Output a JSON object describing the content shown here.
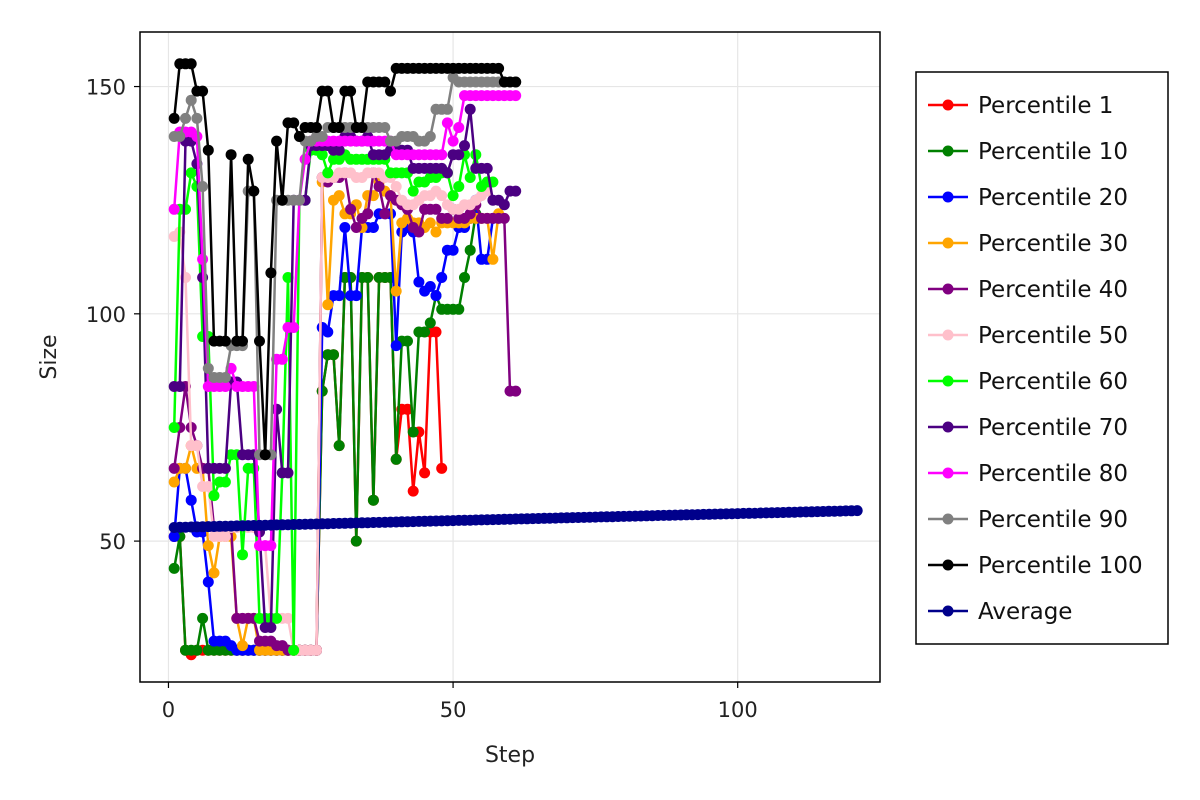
{
  "chart_data": {
    "type": "line",
    "title": "",
    "xlabel": "Step",
    "ylabel": "Size",
    "xlim": [
      -5,
      125
    ],
    "ylim": [
      19,
      162
    ],
    "xticks": [
      0,
      50,
      100
    ],
    "yticks": [
      50,
      100,
      150
    ],
    "grid": true,
    "legend_position": "right",
    "series": [
      {
        "name": "Percentile 1",
        "color": "#ff0000",
        "x": [
          1,
          2,
          3,
          4,
          5,
          6,
          7,
          8,
          9,
          10,
          11,
          12,
          13,
          14,
          15,
          16,
          17,
          18,
          19,
          20,
          21,
          22,
          23,
          24,
          25,
          26,
          27,
          28,
          29,
          30,
          31,
          32,
          33,
          34,
          35,
          36,
          37,
          38,
          39,
          40,
          41,
          42,
          43,
          44,
          45,
          46,
          47,
          48
        ],
        "y": [
          51,
          51,
          26,
          25,
          26,
          26,
          26,
          26,
          26,
          26,
          26,
          26,
          26,
          26,
          26,
          26,
          26,
          26,
          26,
          26,
          26,
          26,
          26,
          26,
          26,
          26,
          83,
          91,
          91,
          71,
          108,
          108,
          50,
          108,
          108,
          59,
          108,
          108,
          108,
          68,
          79,
          79,
          61,
          74,
          65,
          96,
          96,
          66
        ]
      },
      {
        "name": "Percentile 10",
        "color": "#008000",
        "x": [
          1,
          2,
          3,
          4,
          5,
          6,
          7,
          8,
          9,
          10,
          11,
          12,
          13,
          14,
          15,
          16,
          17,
          18,
          19,
          20,
          21,
          22,
          23,
          24,
          25,
          26,
          27,
          28,
          29,
          30,
          31,
          32,
          33,
          34,
          35,
          36,
          37,
          38,
          39,
          40,
          41,
          42,
          43,
          44,
          45,
          46,
          47,
          48,
          49,
          50,
          51,
          52,
          53,
          54
        ],
        "y": [
          44,
          51,
          26,
          26,
          26,
          33,
          26,
          26,
          26,
          26,
          26,
          26,
          26,
          26,
          26,
          26,
          26,
          26,
          26,
          26,
          26,
          26,
          26,
          26,
          26,
          26,
          83,
          91,
          91,
          71,
          108,
          108,
          50,
          108,
          108,
          59,
          108,
          108,
          108,
          68,
          94,
          94,
          74,
          96,
          96,
          98,
          104,
          101,
          101,
          101,
          101,
          108,
          114,
          122
        ]
      },
      {
        "name": "Percentile 20",
        "color": "#0000ff",
        "x": [
          1,
          2,
          3,
          4,
          5,
          6,
          7,
          8,
          9,
          10,
          11,
          12,
          13,
          14,
          15,
          16,
          17,
          18,
          19,
          20,
          21,
          22,
          23,
          24,
          25,
          26,
          27,
          28,
          29,
          30,
          31,
          32,
          33,
          34,
          35,
          36,
          37,
          38,
          39,
          40,
          41,
          42,
          43,
          44,
          45,
          46,
          47,
          48,
          49,
          50,
          51,
          52,
          53,
          54,
          55,
          56,
          57
        ],
        "y": [
          51,
          66,
          66,
          59,
          52,
          52,
          41,
          28,
          28,
          28,
          27,
          26,
          26,
          26,
          26,
          26,
          26,
          26,
          26,
          26,
          26,
          26,
          26,
          26,
          26,
          26,
          97,
          96,
          104,
          104,
          119,
          104,
          104,
          119,
          119,
          119,
          122,
          122,
          122,
          93,
          118,
          119,
          118,
          107,
          105,
          106,
          104,
          108,
          114,
          114,
          119,
          119,
          121,
          125,
          112,
          112,
          121
        ]
      },
      {
        "name": "Percentile 30",
        "color": "#ffa500",
        "x": [
          1,
          2,
          3,
          4,
          5,
          6,
          7,
          8,
          9,
          10,
          11,
          12,
          13,
          14,
          15,
          16,
          17,
          18,
          19,
          20,
          21,
          22,
          23,
          24,
          25,
          26,
          27,
          28,
          29,
          30,
          31,
          32,
          33,
          34,
          35,
          36,
          37,
          38,
          39,
          40,
          41,
          42,
          43,
          44,
          45,
          46,
          47,
          48,
          49,
          50,
          51,
          52,
          53,
          54,
          55,
          56,
          57,
          58
        ],
        "y": [
          63,
          66,
          66,
          71,
          66,
          66,
          49,
          43,
          51,
          51,
          51,
          33,
          27,
          33,
          33,
          26,
          26,
          26,
          26,
          26,
          26,
          26,
          26,
          26,
          26,
          26,
          129,
          102,
          125,
          126,
          122,
          122,
          124,
          119,
          126,
          126,
          129,
          127,
          126,
          105,
          120,
          121,
          120,
          120,
          119,
          120,
          118,
          120,
          120,
          120,
          120,
          120,
          121,
          121,
          121,
          121,
          112,
          122
        ]
      },
      {
        "name": "Percentile 40",
        "color": "#800080",
        "x": [
          1,
          2,
          3,
          4,
          5,
          6,
          7,
          8,
          9,
          10,
          11,
          12,
          13,
          14,
          15,
          16,
          17,
          18,
          19,
          20,
          21,
          22,
          23,
          24,
          25,
          26,
          27,
          28,
          29,
          30,
          31,
          32,
          33,
          34,
          35,
          36,
          37,
          38,
          39,
          40,
          41,
          42,
          43,
          44,
          45,
          46,
          47,
          48,
          49,
          50,
          51,
          52,
          53,
          54,
          55,
          56,
          57,
          58,
          59,
          60,
          61
        ],
        "y": [
          66,
          75,
          84,
          75,
          71,
          66,
          66,
          53,
          53,
          53,
          53,
          33,
          33,
          33,
          33,
          28,
          28,
          28,
          27,
          27,
          26,
          26,
          26,
          26,
          26,
          26,
          130,
          129,
          130,
          130,
          131,
          123,
          119,
          121,
          122,
          131,
          128,
          122,
          126,
          125,
          124,
          123,
          119,
          118,
          123,
          123,
          123,
          121,
          121,
          123,
          121,
          121,
          122,
          124,
          121,
          121,
          121,
          121,
          121,
          83,
          83
        ]
      },
      {
        "name": "Percentile 50",
        "color": "#ffc0cb",
        "x": [
          1,
          2,
          3,
          4,
          5,
          6,
          7,
          8,
          9,
          10,
          11,
          12,
          13,
          14,
          15,
          16,
          17,
          18,
          19,
          20,
          21,
          22,
          23,
          24,
          25,
          26,
          27,
          28,
          29,
          30,
          31,
          32,
          33,
          34,
          35,
          36,
          37,
          38,
          39,
          40,
          41,
          42,
          43,
          44,
          45,
          46,
          47,
          48,
          49,
          50,
          51,
          52,
          53,
          54,
          55,
          56
        ],
        "y": [
          117,
          118,
          108,
          71,
          71,
          62,
          62,
          51,
          51,
          51,
          53,
          53,
          53,
          53,
          53,
          49,
          49,
          33,
          33,
          33,
          33,
          26,
          26,
          26,
          26,
          26,
          130,
          130,
          130,
          131,
          131,
          131,
          130,
          130,
          131,
          131,
          131,
          130,
          130,
          128,
          125,
          124,
          124,
          125,
          126,
          126,
          127,
          126,
          124,
          123,
          123,
          124,
          124,
          125,
          126,
          127
        ]
      },
      {
        "name": "Percentile 60",
        "color": "#00ff00",
        "x": [
          1,
          2,
          3,
          4,
          5,
          6,
          7,
          8,
          9,
          10,
          11,
          12,
          13,
          14,
          15,
          16,
          17,
          18,
          19,
          20,
          21,
          22,
          23,
          24,
          25,
          26,
          27,
          28,
          29,
          30,
          31,
          32,
          33,
          34,
          35,
          36,
          37,
          38,
          39,
          40,
          41,
          42,
          43,
          44,
          45,
          46,
          47,
          48,
          49,
          50,
          51,
          52,
          53,
          54,
          55,
          56,
          57
        ],
        "y": [
          75,
          123,
          123,
          131,
          128,
          95,
          95,
          60,
          63,
          63,
          69,
          69,
          47,
          66,
          66,
          33,
          33,
          33,
          33,
          65,
          108,
          26,
          125,
          125,
          136,
          136,
          135,
          131,
          134,
          134,
          135,
          134,
          134,
          134,
          134,
          134,
          134,
          134,
          131,
          131,
          131,
          131,
          127,
          129,
          129,
          130,
          130,
          131,
          131,
          126,
          128,
          135,
          130,
          135,
          128,
          129,
          129
        ]
      },
      {
        "name": "Percentile 70",
        "color": "#4b0082",
        "x": [
          1,
          2,
          3,
          4,
          5,
          6,
          7,
          8,
          9,
          10,
          11,
          12,
          13,
          14,
          15,
          16,
          17,
          18,
          19,
          20,
          21,
          22,
          23,
          24,
          25,
          26,
          27,
          28,
          29,
          30,
          31,
          32,
          33,
          34,
          35,
          36,
          37,
          38,
          39,
          40,
          41,
          42,
          43,
          44,
          45,
          46,
          47,
          48,
          49,
          50,
          51,
          52,
          53,
          54,
          55,
          56,
          57,
          58,
          59,
          60,
          61
        ],
        "y": [
          84,
          84,
          138,
          138,
          133,
          108,
          66,
          66,
          66,
          66,
          85,
          85,
          69,
          69,
          69,
          52,
          31,
          31,
          79,
          65,
          65,
          125,
          125,
          125,
          137,
          137,
          137,
          137,
          136,
          136,
          139,
          139,
          138,
          138,
          139,
          135,
          135,
          135,
          136,
          136,
          136,
          136,
          132,
          132,
          132,
          132,
          132,
          132,
          131,
          135,
          135,
          137,
          145,
          132,
          132,
          132,
          125,
          125,
          124,
          127,
          127
        ]
      },
      {
        "name": "Percentile 80",
        "color": "#ff00ff",
        "x": [
          1,
          2,
          3,
          4,
          5,
          6,
          7,
          8,
          9,
          10,
          11,
          12,
          13,
          14,
          15,
          16,
          17,
          18,
          19,
          20,
          21,
          22,
          23,
          24,
          25,
          26,
          27,
          28,
          29,
          30,
          31,
          32,
          33,
          34,
          35,
          36,
          37,
          38,
          39,
          40,
          41,
          42,
          43,
          44,
          45,
          46,
          47,
          48,
          49,
          50,
          51,
          52,
          53,
          54,
          55,
          56,
          57,
          58,
          59,
          60,
          61
        ],
        "y": [
          123,
          140,
          140,
          140,
          139,
          112,
          84,
          84,
          84,
          84,
          88,
          84,
          84,
          84,
          84,
          49,
          49,
          49,
          90,
          90,
          97,
          97,
          125,
          134,
          138,
          138,
          138,
          138,
          138,
          138,
          138,
          138,
          138,
          138,
          138,
          138,
          138,
          138,
          138,
          135,
          135,
          135,
          135,
          135,
          135,
          135,
          135,
          135,
          142,
          138,
          141,
          148,
          148,
          148,
          148,
          148,
          148,
          148,
          148,
          148,
          148
        ]
      },
      {
        "name": "Percentile 90",
        "color": "#808080",
        "x": [
          1,
          2,
          3,
          4,
          5,
          6,
          7,
          8,
          9,
          10,
          11,
          12,
          13,
          14,
          15,
          16,
          17,
          18,
          19,
          20,
          21,
          22,
          23,
          24,
          25,
          26,
          27,
          28,
          29,
          30,
          31,
          32,
          33,
          34,
          35,
          36,
          37,
          38,
          39,
          40,
          41,
          42,
          43,
          44,
          45,
          46,
          47,
          48,
          49,
          50,
          51,
          52,
          53,
          54,
          55,
          56,
          57,
          58,
          59,
          60,
          61
        ],
        "y": [
          139,
          139,
          143,
          147,
          143,
          128,
          88,
          86,
          86,
          86,
          93,
          93,
          93,
          127,
          127,
          69,
          69,
          69,
          125,
          125,
          125,
          125,
          125,
          138,
          138,
          139,
          139,
          141,
          141,
          141,
          141,
          141,
          141,
          141,
          141,
          141,
          141,
          141,
          138,
          138,
          139,
          139,
          139,
          138,
          138,
          139,
          145,
          145,
          145,
          152,
          151,
          151,
          151,
          151,
          151,
          151,
          151,
          151,
          151,
          151,
          151
        ]
      },
      {
        "name": "Percentile 100",
        "color": "#000000",
        "x": [
          1,
          2,
          3,
          4,
          5,
          6,
          7,
          8,
          9,
          10,
          11,
          12,
          13,
          14,
          15,
          16,
          17,
          18,
          19,
          20,
          21,
          22,
          23,
          24,
          25,
          26,
          27,
          28,
          29,
          30,
          31,
          32,
          33,
          34,
          35,
          36,
          37,
          38,
          39,
          40,
          41,
          42,
          43,
          44,
          45,
          46,
          47,
          48,
          49,
          50,
          51,
          52,
          53,
          54,
          55,
          56,
          57,
          58,
          59,
          60,
          61
        ],
        "y": [
          143,
          155,
          155,
          155,
          149,
          149,
          136,
          94,
          94,
          94,
          135,
          94,
          94,
          134,
          127,
          94,
          69,
          109,
          138,
          125,
          142,
          142,
          139,
          141,
          141,
          141,
          149,
          149,
          141,
          141,
          149,
          149,
          141,
          141,
          151,
          151,
          151,
          151,
          149,
          154,
          154,
          154,
          154,
          154,
          154,
          154,
          154,
          154,
          154,
          154,
          154,
          154,
          154,
          154,
          154,
          154,
          154,
          154,
          151,
          151,
          151
        ]
      },
      {
        "name": "Average",
        "color": "#00008b",
        "x_start": 1,
        "x_end": 121,
        "y_start": 53.0,
        "y_end": 56.7
      }
    ]
  }
}
